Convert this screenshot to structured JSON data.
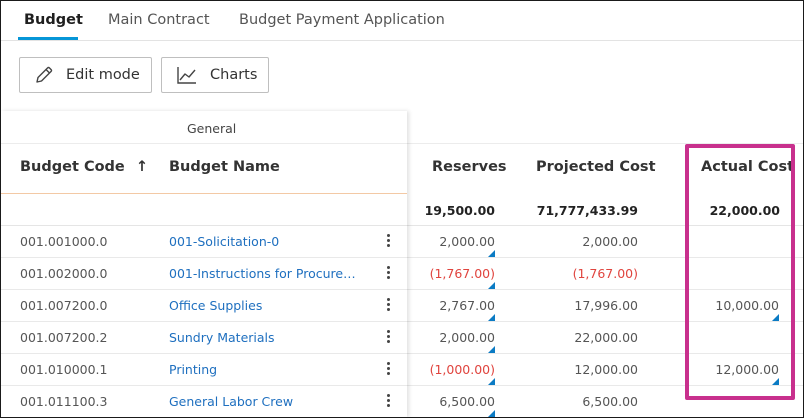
{
  "tabs": [
    {
      "label": "Budget",
      "active": true
    },
    {
      "label": "Main Contract",
      "active": false
    },
    {
      "label": "Budget Payment Application",
      "active": false
    }
  ],
  "toolbar": {
    "edit_label": "Edit mode",
    "charts_label": "Charts"
  },
  "table": {
    "group_label": "General",
    "headers": {
      "code": "Budget Code",
      "name": "Budget Name",
      "reserves": "Reserves",
      "projected": "Projected Cost",
      "actual": "Actual Cost"
    },
    "sort_indicator": "↑",
    "totals": {
      "reserves": "19,500.00",
      "projected": "71,777,433.99",
      "actual": "22,000.00"
    },
    "rows": [
      {
        "code": "001.001000.0",
        "name": "001-Solicitation-0",
        "reserves": "2,000.00",
        "projected": "2,000.00",
        "actual": ""
      },
      {
        "code": "001.002000.0",
        "name": "001-Instructions for Procurement",
        "reserves": "(1,767.00)",
        "projected": "(1,767.00)",
        "actual": ""
      },
      {
        "code": "001.007200.0",
        "name": "Office Supplies",
        "reserves": "2,767.00",
        "projected": "17,996.00",
        "actual": "10,000.00"
      },
      {
        "code": "001.007200.2",
        "name": "Sundry Materials",
        "reserves": "2,000.00",
        "projected": "22,000.00",
        "actual": ""
      },
      {
        "code": "001.010000.1",
        "name": "Printing",
        "reserves": "(1,000.00)",
        "projected": "12,000.00",
        "actual": "12,000.00"
      },
      {
        "code": "001.011100.3",
        "name": "General Labor Crew",
        "reserves": "6,500.00",
        "projected": "6,500.00",
        "actual": ""
      }
    ]
  },
  "colors": {
    "accent": "#0696d7",
    "link": "#1e6fbf",
    "negative": "#e0443e",
    "highlight": "#c8308d"
  }
}
